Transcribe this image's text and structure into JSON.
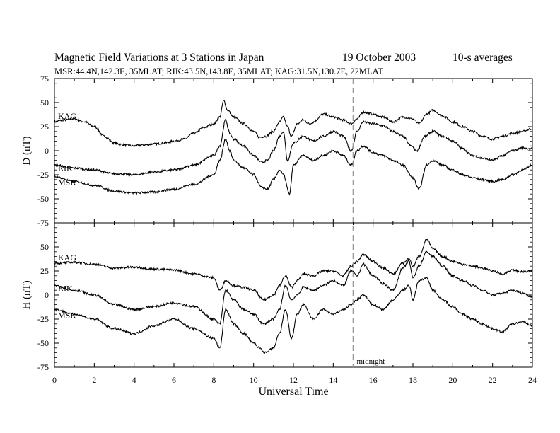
{
  "header": {
    "title": "Magnetic Field Variations at 3 Stations in Japan",
    "date": "19 October 2003",
    "averaging": "10-s averages",
    "subtitle": "MSR:44.4N,142.3E, 35MLAT;  RIK:43.5N,143.8E, 35MLAT;  KAG:31.5N,130.7E, 22MLAT"
  },
  "chart_data": [
    {
      "type": "line",
      "panel": "D",
      "ylabel": "D (nT)",
      "ylim": [
        -75,
        75
      ],
      "yticks": [
        75,
        50,
        25,
        0,
        -25,
        -50,
        -75
      ],
      "xlim": [
        0,
        24
      ],
      "series": [
        {
          "name": "KAG",
          "x": [
            0,
            0.5,
            1,
            1.5,
            2,
            2.5,
            3,
            3.5,
            4,
            4.5,
            5,
            5.5,
            6,
            6.5,
            7,
            7.5,
            8,
            8.3,
            8.5,
            8.7,
            9,
            9.5,
            10,
            10.3,
            10.6,
            11,
            11.3,
            11.5,
            11.7,
            11.9,
            12.2,
            12.5,
            12.8,
            13,
            13.5,
            14,
            14.5,
            14.9,
            15.2,
            15.5,
            16,
            16.5,
            17,
            17.5,
            18,
            18.3,
            18.7,
            19,
            19.5,
            20,
            20.5,
            21,
            21.5,
            22,
            22.5,
            23,
            23.5,
            24
          ],
          "y": [
            30,
            32,
            33,
            30,
            25,
            15,
            8,
            6,
            5,
            6,
            7,
            8,
            10,
            12,
            18,
            24,
            28,
            35,
            52,
            42,
            35,
            28,
            20,
            14,
            15,
            20,
            30,
            35,
            25,
            15,
            28,
            32,
            28,
            30,
            38,
            35,
            32,
            28,
            33,
            40,
            38,
            35,
            30,
            35,
            33,
            28,
            38,
            42,
            36,
            30,
            25,
            20,
            15,
            12,
            15,
            18,
            20,
            23
          ]
        },
        {
          "name": "RIK",
          "x": [
            0,
            1,
            2,
            3,
            4,
            5,
            6,
            7,
            8,
            8.3,
            8.6,
            8.8,
            9,
            9.5,
            10,
            10.4,
            10.7,
            11,
            11.3,
            11.5,
            11.7,
            12,
            12.5,
            13,
            13.5,
            14,
            14.5,
            14.9,
            15.2,
            15.5,
            16,
            16.5,
            17,
            17.5,
            17.9,
            18.2,
            18.6,
            19,
            19.5,
            20,
            20.5,
            21,
            21.5,
            22,
            22.5,
            23,
            23.5,
            24
          ],
          "y": [
            -15,
            -18,
            -20,
            -24,
            -25,
            -22,
            -20,
            -15,
            -5,
            5,
            32,
            18,
            12,
            5,
            -5,
            -12,
            -10,
            0,
            15,
            20,
            -10,
            8,
            15,
            10,
            15,
            20,
            15,
            0,
            20,
            30,
            28,
            26,
            20,
            15,
            5,
            0,
            15,
            20,
            15,
            10,
            2,
            -5,
            -8,
            -10,
            -5,
            0,
            3,
            2
          ]
        },
        {
          "name": "MSR",
          "x": [
            0,
            1,
            2,
            3,
            4,
            5,
            6,
            7,
            8,
            8.3,
            8.6,
            8.8,
            9,
            9.5,
            10,
            10.4,
            10.7,
            11,
            11.3,
            11.5,
            11.8,
            12,
            12.5,
            13,
            13.5,
            14,
            14.5,
            14.9,
            15.2,
            15.5,
            16,
            16.5,
            17,
            17.5,
            18,
            18.3,
            18.7,
            19,
            19.5,
            20,
            20.5,
            21,
            21.5,
            22,
            22.5,
            23,
            23.5,
            24
          ],
          "y": [
            -27,
            -32,
            -36,
            -42,
            -44,
            -43,
            -40,
            -35,
            -25,
            -10,
            12,
            0,
            -10,
            -18,
            -25,
            -38,
            -40,
            -30,
            -20,
            -25,
            -45,
            -15,
            -5,
            -10,
            -5,
            0,
            -5,
            -15,
            0,
            5,
            -2,
            -5,
            -10,
            -15,
            -28,
            -40,
            -15,
            -10,
            -15,
            -20,
            -25,
            -28,
            -30,
            -32,
            -30,
            -25,
            -20,
            -15
          ]
        }
      ],
      "annotations": [
        "KAG",
        "RIK",
        "MSR"
      ]
    },
    {
      "type": "line",
      "panel": "H",
      "ylabel": "H (nT)",
      "ylim": [
        -75,
        75
      ],
      "yticks": [
        50,
        25,
        0,
        -25,
        -50,
        -75
      ],
      "xlim": [
        0,
        24
      ],
      "xlabel": "Universal Time",
      "xticks": [
        0,
        2,
        4,
        6,
        8,
        10,
        12,
        14,
        16,
        18,
        20,
        22,
        24
      ],
      "series": [
        {
          "name": "KAG",
          "x": [
            0,
            1,
            2,
            3,
            4,
            5,
            6,
            7,
            8,
            8.3,
            8.6,
            9,
            9.5,
            10,
            10.5,
            11,
            11.3,
            11.6,
            11.9,
            12.2,
            12.5,
            13,
            13.5,
            14,
            14.5,
            14.9,
            15.2,
            15.5,
            16,
            16.5,
            17,
            17.5,
            17.8,
            18,
            18.3,
            18.7,
            19,
            19.5,
            20,
            20.5,
            21,
            21.5,
            22,
            22.5,
            23,
            23.5,
            24
          ],
          "y": [
            33,
            34,
            32,
            28,
            29,
            27,
            26,
            22,
            18,
            5,
            15,
            10,
            8,
            5,
            -5,
            0,
            10,
            20,
            8,
            15,
            22,
            20,
            25,
            25,
            20,
            30,
            35,
            42,
            35,
            28,
            22,
            33,
            38,
            30,
            40,
            58,
            48,
            40,
            35,
            32,
            30,
            28,
            25,
            22,
            26,
            24,
            25
          ]
        },
        {
          "name": "RIK",
          "x": [
            0,
            1,
            2,
            3,
            4,
            5,
            6,
            7,
            8,
            8.3,
            8.6,
            9,
            9.5,
            10,
            10.5,
            11,
            11.3,
            11.6,
            11.9,
            12.2,
            12.5,
            13,
            13.5,
            14,
            14.5,
            14.9,
            15.2,
            15.5,
            16,
            16.5,
            17,
            17.5,
            17.8,
            18,
            18.3,
            18.7,
            19,
            19.5,
            20,
            20.5,
            21,
            21.5,
            22,
            22.5,
            23,
            23.5,
            24
          ],
          "y": [
            10,
            5,
            0,
            -10,
            -15,
            -12,
            -8,
            -12,
            -25,
            -30,
            5,
            -5,
            -15,
            -20,
            -30,
            -25,
            -15,
            10,
            -5,
            0,
            8,
            5,
            10,
            15,
            10,
            25,
            20,
            32,
            20,
            12,
            5,
            28,
            35,
            18,
            30,
            45,
            40,
            30,
            20,
            15,
            10,
            5,
            0,
            2,
            5,
            2,
            -2
          ]
        },
        {
          "name": "MSR",
          "x": [
            0,
            1,
            2,
            3,
            4,
            5,
            6,
            7,
            8,
            8.3,
            8.6,
            9,
            9.5,
            10,
            10.3,
            10.6,
            11,
            11.3,
            11.6,
            11.9,
            12.2,
            12.5,
            13,
            13.5,
            14,
            14.5,
            14.9,
            15.2,
            15.5,
            16,
            16.5,
            17,
            17.5,
            17.8,
            18,
            18.3,
            18.7,
            19,
            19.5,
            20,
            20.5,
            21,
            21.5,
            22,
            22.5,
            23,
            23.5,
            24
          ],
          "y": [
            -15,
            -20,
            -25,
            -35,
            -40,
            -32,
            -25,
            -35,
            -45,
            -55,
            -15,
            -30,
            -40,
            -50,
            -55,
            -60,
            -55,
            -40,
            -15,
            -45,
            -20,
            -10,
            -25,
            -15,
            -20,
            -15,
            -10,
            -5,
            0,
            -10,
            -15,
            -5,
            5,
            10,
            -5,
            15,
            18,
            5,
            -5,
            -12,
            -20,
            -25,
            -30,
            -35,
            -38,
            -30,
            -28,
            -32
          ]
        }
      ],
      "annotations": [
        "KAG",
        "RIK",
        "MSR",
        "midnight"
      ],
      "marker_x": 15,
      "marker_label": "midnight"
    }
  ]
}
